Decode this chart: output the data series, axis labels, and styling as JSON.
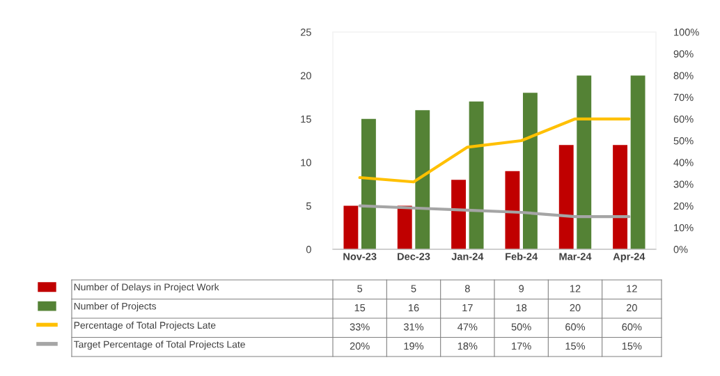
{
  "chart_data": {
    "type": "bar",
    "categories": [
      "Nov-23",
      "Dec-23",
      "Jan-24",
      "Feb-24",
      "Mar-24",
      "Apr-24"
    ],
    "series": [
      {
        "name": "Number of Delays in Project Work",
        "color": "#c00000",
        "values": [
          5,
          5,
          8,
          9,
          12,
          12
        ],
        "value_labels": [
          "5",
          "5",
          "8",
          "9",
          "12",
          "12"
        ]
      },
      {
        "name": "Number of Projects",
        "color": "#548235",
        "values": [
          15,
          16,
          17,
          18,
          20,
          20
        ],
        "value_labels": [
          "15",
          "16",
          "17",
          "18",
          "20",
          "20"
        ]
      },
      {
        "name": "Percentage of Total Projects Late",
        "type": "line",
        "axis": "y2",
        "color": "#ffc000",
        "values": [
          33,
          31,
          47,
          50,
          60,
          60
        ],
        "value_labels": [
          "33%",
          "31%",
          "47%",
          "50%",
          "60%",
          "60%"
        ]
      },
      {
        "name": "Target Percentage of Total Projects Late",
        "type": "line",
        "axis": "y2",
        "color": "#a5a5a5",
        "values": [
          20,
          19,
          18,
          17,
          15,
          15
        ],
        "value_labels": [
          "20%",
          "19%",
          "18%",
          "17%",
          "15%",
          "15%"
        ]
      }
    ],
    "ylim": [
      0,
      25
    ],
    "yticks": [
      0,
      5,
      10,
      15,
      20,
      25
    ],
    "y2lim": [
      0,
      100
    ],
    "y2ticks": [
      {
        "value": 0,
        "label": "0%"
      },
      {
        "value": 10,
        "label": "10%"
      },
      {
        "value": 20,
        "label": "20%"
      },
      {
        "value": 30,
        "label": "30%"
      },
      {
        "value": 40,
        "label": "40%"
      },
      {
        "value": 50,
        "label": "50%"
      },
      {
        "value": 60,
        "label": "60%"
      },
      {
        "value": 70,
        "label": "70%"
      },
      {
        "value": 80,
        "label": "80%"
      },
      {
        "value": 90,
        "label": "90%"
      },
      {
        "value": 100,
        "label": "100%"
      }
    ],
    "grid": false,
    "legend": "bottom left"
  }
}
